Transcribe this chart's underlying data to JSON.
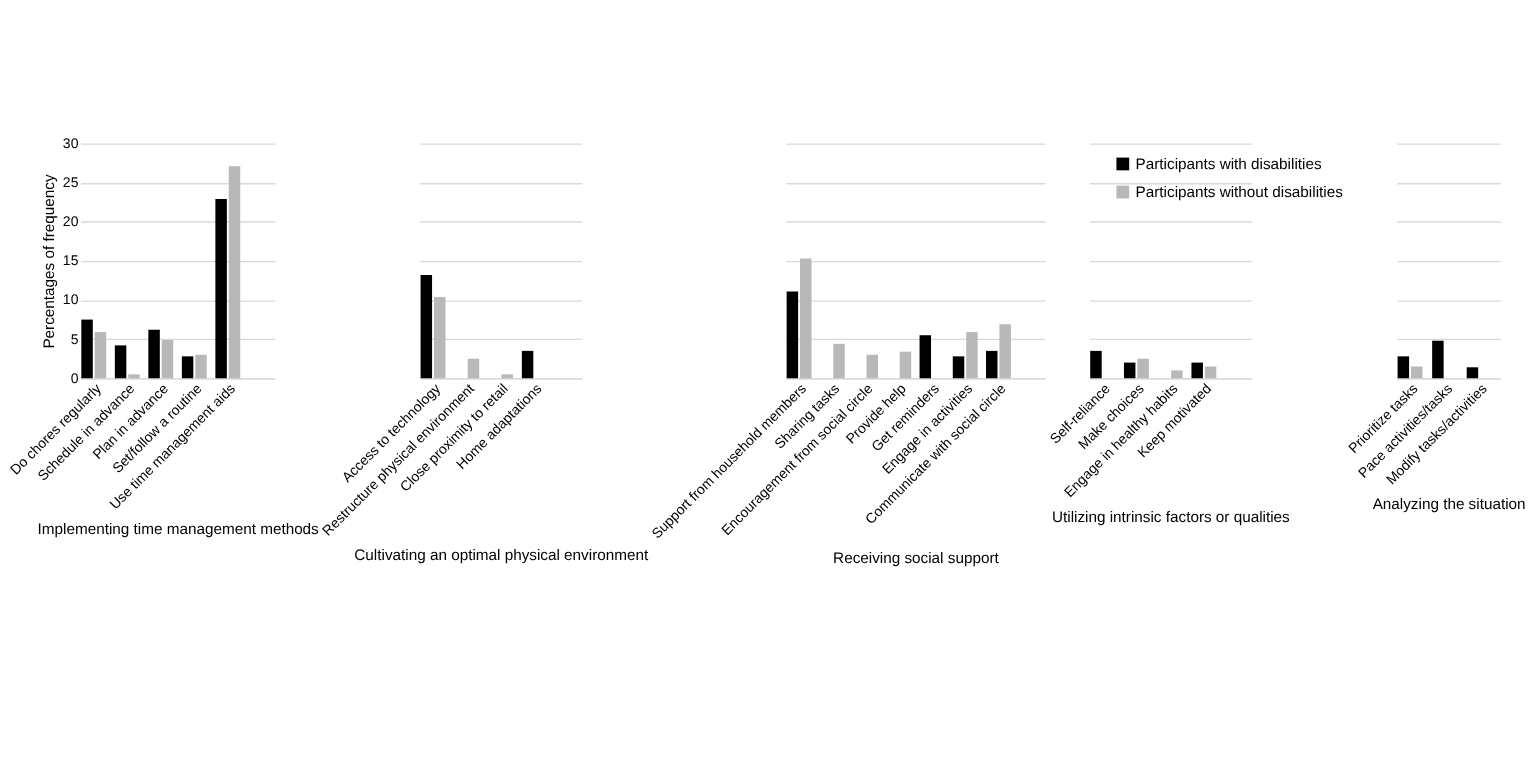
{
  "chart_data": [
    {
      "type": "bar",
      "xlabel": "Implementing time management methods",
      "ylabel": "Percentages of frequency",
      "categories": [
        "Do chores regularly",
        "Schedule in advance",
        "Plan in advance",
        "Set/follow a routine",
        "Use time management aids"
      ],
      "ylim": [
        0,
        30
      ],
      "yticks": [
        0,
        5,
        10,
        15,
        20,
        25,
        30
      ],
      "grid": "y",
      "series": [
        {
          "color": "#000000",
          "values": [
            7.5,
            4.2,
            6.2,
            2.8,
            22.9
          ]
        },
        {
          "color": "#b8b8b8",
          "values": [
            5.9,
            0.5,
            4.9,
            3.0,
            27.1
          ]
        }
      ]
    },
    {
      "type": "bar",
      "xlabel": "Cultivating an optimal physical environment",
      "categories": [
        "Access to technology",
        "Restructure physical environment",
        "Close proximity to retail",
        "Home adaptations"
      ],
      "ylim": [
        0,
        30
      ],
      "yticks": [
        0,
        5,
        10,
        15,
        20,
        25,
        30
      ],
      "grid": "y",
      "tick_labels": "x",
      "series": [
        {
          "color": "#000000",
          "values": [
            13.2,
            null,
            null,
            3.5
          ]
        },
        {
          "color": "#b8b8b8",
          "values": [
            10.4,
            2.5,
            0.5,
            null
          ]
        }
      ]
    },
    {
      "type": "bar",
      "xlabel": "Receiving social support",
      "categories": [
        "Support from household members",
        "Sharing tasks",
        "Encouragement from social circle",
        "Provide help",
        "Get reminders",
        "Engage in activities",
        "Communicate with social circle"
      ],
      "ylim": [
        0,
        30
      ],
      "yticks": [
        0,
        5,
        10,
        15,
        20,
        25,
        30
      ],
      "grid": "y",
      "tick_labels": "x",
      "series": [
        {
          "color": "#000000",
          "values": [
            11.1,
            null,
            null,
            null,
            5.5,
            2.8,
            3.5
          ]
        },
        {
          "color": "#b8b8b8",
          "values": [
            15.3,
            4.4,
            3.0,
            3.4,
            null,
            5.9,
            6.9
          ]
        }
      ]
    },
    {
      "type": "bar",
      "xlabel": "Utilizing intrinsic factors or qualities",
      "categories": [
        "Self-reliance",
        "Make choices",
        "Engage in healthy habits",
        "Keep motivated"
      ],
      "ylim": [
        0,
        30
      ],
      "yticks": [
        0,
        5,
        10,
        15,
        20,
        25,
        30
      ],
      "grid": "y",
      "tick_labels": "x",
      "legend": "top right",
      "series": [
        {
          "name": "Participants with disabilities",
          "color": "#000000",
          "values": [
            3.5,
            2.0,
            null,
            2.0
          ]
        },
        {
          "name": "Participants without disabilities",
          "color": "#b8b8b8",
          "values": [
            null,
            2.5,
            1.0,
            1.5
          ]
        }
      ]
    },
    {
      "type": "bar",
      "xlabel": "Analyzing the situation",
      "categories": [
        "Prioritize tasks",
        "Pace activities/tasks",
        "Modify tasks/activities"
      ],
      "ylim": [
        0,
        30
      ],
      "yticks": [
        0,
        5,
        10,
        15,
        20,
        25,
        30
      ],
      "grid": "y",
      "tick_labels": "x",
      "series": [
        {
          "color": "#000000",
          "values": [
            2.8,
            4.8,
            1.4
          ]
        },
        {
          "color": "#b8b8b8",
          "values": [
            1.5,
            null,
            null
          ]
        }
      ]
    }
  ]
}
